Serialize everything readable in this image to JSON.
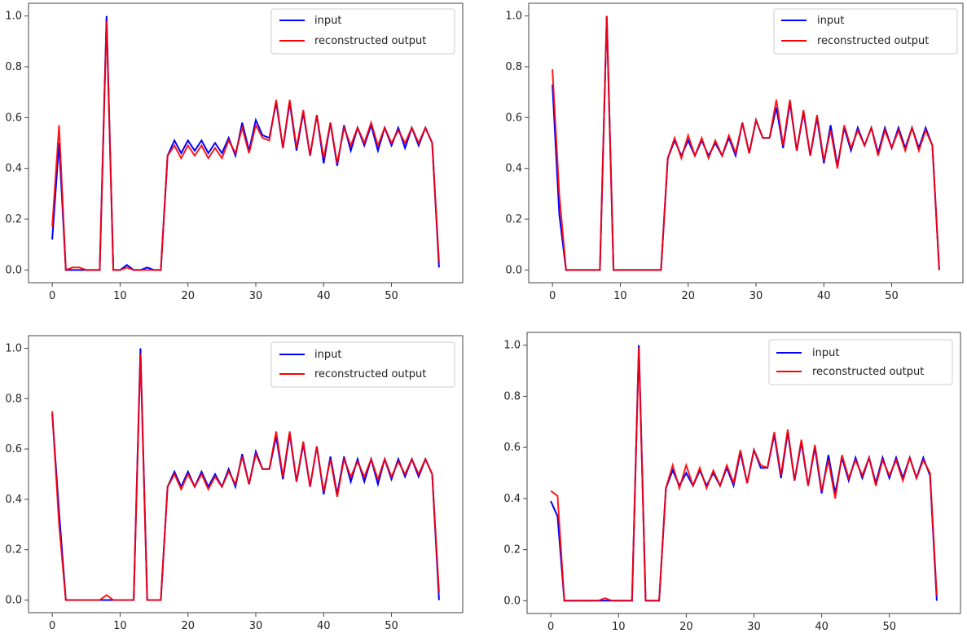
{
  "chart_data": [
    {
      "type": "line",
      "xlim": [
        -3.5,
        60.5
      ],
      "ylim": [
        -0.05,
        1.05
      ],
      "xticks": [
        0,
        10,
        20,
        30,
        40,
        50
      ],
      "yticks": [
        0.0,
        0.2,
        0.4,
        0.6,
        0.8,
        1.0
      ],
      "xticklabels": [
        "0",
        "10",
        "20",
        "30",
        "40",
        "50"
      ],
      "yticklabels": [
        "0.0",
        "0.2",
        "0.4",
        "0.6",
        "0.8",
        "1.0"
      ],
      "legend_position": "top-right",
      "series": [
        {
          "name": "input",
          "color": "#0000ff",
          "values": [
            0.12,
            0.5,
            0.0,
            0.0,
            0.0,
            0.0,
            0.0,
            0.0,
            1.0,
            0.0,
            0.0,
            0.02,
            0.0,
            0.0,
            0.01,
            0.0,
            0.0,
            0.45,
            0.51,
            0.46,
            0.51,
            0.47,
            0.51,
            0.46,
            0.5,
            0.46,
            0.52,
            0.45,
            0.58,
            0.47,
            0.59,
            0.53,
            0.52,
            0.66,
            0.48,
            0.66,
            0.47,
            0.62,
            0.45,
            0.61,
            0.42,
            0.58,
            0.41,
            0.57,
            0.47,
            0.56,
            0.49,
            0.57,
            0.47,
            0.56,
            0.49,
            0.56,
            0.48,
            0.56,
            0.49,
            0.56,
            0.5,
            0.01
          ]
        },
        {
          "name": "reconstructed output",
          "color": "#ff0000",
          "values": [
            0.17,
            0.57,
            0.0,
            0.01,
            0.01,
            0.0,
            0.0,
            0.0,
            0.98,
            0.0,
            0.0,
            0.01,
            0.0,
            0.0,
            0.0,
            0.0,
            0.0,
            0.45,
            0.49,
            0.44,
            0.49,
            0.45,
            0.49,
            0.44,
            0.48,
            0.44,
            0.51,
            0.46,
            0.56,
            0.46,
            0.57,
            0.52,
            0.51,
            0.67,
            0.48,
            0.67,
            0.48,
            0.63,
            0.45,
            0.61,
            0.44,
            0.58,
            0.42,
            0.56,
            0.49,
            0.56,
            0.5,
            0.58,
            0.49,
            0.56,
            0.5,
            0.55,
            0.5,
            0.56,
            0.5,
            0.56,
            0.5,
            0.03
          ]
        }
      ]
    },
    {
      "type": "line",
      "xlim": [
        -3.5,
        60.5
      ],
      "ylim": [
        -0.05,
        1.05
      ],
      "xticks": [
        0,
        10,
        20,
        30,
        40,
        50
      ],
      "yticks": [
        0.0,
        0.2,
        0.4,
        0.6,
        0.8,
        1.0
      ],
      "xticklabels": [
        "0",
        "10",
        "20",
        "30",
        "40",
        "50"
      ],
      "yticklabels": [
        "0.0",
        "0.2",
        "0.4",
        "0.6",
        "0.8",
        "1.0"
      ],
      "legend_position": "top-right",
      "series": [
        {
          "name": "input",
          "color": "#0000ff",
          "values": [
            0.73,
            0.22,
            0.0,
            0.0,
            0.0,
            0.0,
            0.0,
            0.0,
            1.0,
            0.0,
            0.0,
            0.0,
            0.0,
            0.0,
            0.0,
            0.0,
            0.0,
            0.44,
            0.51,
            0.45,
            0.51,
            0.45,
            0.51,
            0.45,
            0.5,
            0.45,
            0.52,
            0.45,
            0.58,
            0.46,
            0.59,
            0.52,
            0.52,
            0.64,
            0.48,
            0.66,
            0.47,
            0.62,
            0.45,
            0.6,
            0.42,
            0.57,
            0.41,
            0.56,
            0.47,
            0.56,
            0.49,
            0.56,
            0.46,
            0.56,
            0.48,
            0.56,
            0.48,
            0.56,
            0.48,
            0.56,
            0.49,
            0.0
          ]
        },
        {
          "name": "reconstructed output",
          "color": "#ff0000",
          "values": [
            0.79,
            0.3,
            0.0,
            0.0,
            0.0,
            0.0,
            0.0,
            0.0,
            1.0,
            0.0,
            0.0,
            0.0,
            0.0,
            0.0,
            0.0,
            0.0,
            0.0,
            0.44,
            0.52,
            0.44,
            0.53,
            0.45,
            0.52,
            0.44,
            0.51,
            0.45,
            0.53,
            0.46,
            0.58,
            0.46,
            0.59,
            0.52,
            0.52,
            0.67,
            0.49,
            0.67,
            0.47,
            0.63,
            0.45,
            0.61,
            0.43,
            0.55,
            0.4,
            0.57,
            0.48,
            0.55,
            0.49,
            0.56,
            0.45,
            0.55,
            0.48,
            0.55,
            0.47,
            0.56,
            0.47,
            0.55,
            0.49,
            0.0
          ]
        }
      ]
    },
    {
      "type": "line",
      "xlim": [
        -3.5,
        60.5
      ],
      "ylim": [
        -0.05,
        1.05
      ],
      "xticks": [
        0,
        10,
        20,
        30,
        40,
        50
      ],
      "yticks": [
        0.0,
        0.2,
        0.4,
        0.6,
        0.8,
        1.0
      ],
      "xticklabels": [
        "0",
        "10",
        "20",
        "30",
        "40",
        "50"
      ],
      "yticklabels": [
        "0.0",
        "0.2",
        "0.4",
        "0.6",
        "0.8",
        "1.0"
      ],
      "legend_position": "top-right",
      "series": [
        {
          "name": "input",
          "color": "#0000ff",
          "values": [
            0.74,
            0.35,
            0.0,
            0.0,
            0.0,
            0.0,
            0.0,
            0.0,
            0.0,
            0.0,
            0.0,
            0.0,
            0.0,
            1.0,
            0.0,
            0.0,
            0.0,
            0.45,
            0.51,
            0.45,
            0.51,
            0.45,
            0.51,
            0.45,
            0.5,
            0.45,
            0.52,
            0.45,
            0.58,
            0.46,
            0.59,
            0.52,
            0.52,
            0.65,
            0.48,
            0.66,
            0.47,
            0.62,
            0.45,
            0.61,
            0.42,
            0.57,
            0.42,
            0.57,
            0.47,
            0.56,
            0.47,
            0.56,
            0.46,
            0.56,
            0.48,
            0.56,
            0.49,
            0.56,
            0.49,
            0.56,
            0.5,
            0.0
          ]
        },
        {
          "name": "reconstructed output",
          "color": "#ff0000",
          "values": [
            0.75,
            0.3,
            0.0,
            0.0,
            0.0,
            0.0,
            0.0,
            0.0,
            0.02,
            0.0,
            0.0,
            0.0,
            0.0,
            0.98,
            0.0,
            0.0,
            0.0,
            0.45,
            0.5,
            0.44,
            0.5,
            0.45,
            0.5,
            0.44,
            0.49,
            0.45,
            0.51,
            0.46,
            0.57,
            0.46,
            0.58,
            0.52,
            0.52,
            0.67,
            0.49,
            0.67,
            0.47,
            0.63,
            0.45,
            0.61,
            0.43,
            0.56,
            0.41,
            0.56,
            0.49,
            0.55,
            0.49,
            0.56,
            0.48,
            0.56,
            0.49,
            0.55,
            0.5,
            0.56,
            0.5,
            0.56,
            0.5,
            0.03
          ]
        }
      ]
    },
    {
      "type": "line",
      "xlim": [
        -3.5,
        60.5
      ],
      "ylim": [
        -0.05,
        1.05
      ],
      "xticks": [
        0,
        10,
        20,
        30,
        40,
        50
      ],
      "yticks": [
        0.0,
        0.2,
        0.4,
        0.6,
        0.8,
        1.0
      ],
      "xticklabels": [
        "0",
        "10",
        "20",
        "30",
        "40",
        "50"
      ],
      "yticklabels": [
        "0.0",
        "0.2",
        "0.4",
        "0.6",
        "0.8",
        "1.0"
      ],
      "legend_position": "top-right",
      "series": [
        {
          "name": "input",
          "color": "#0000ff",
          "values": [
            0.39,
            0.33,
            0.0,
            0.0,
            0.0,
            0.0,
            0.0,
            0.0,
            0.0,
            0.0,
            0.0,
            0.0,
            0.0,
            1.0,
            0.0,
            0.0,
            0.0,
            0.44,
            0.51,
            0.45,
            0.5,
            0.45,
            0.51,
            0.45,
            0.5,
            0.45,
            0.52,
            0.45,
            0.58,
            0.46,
            0.59,
            0.52,
            0.52,
            0.65,
            0.48,
            0.66,
            0.47,
            0.62,
            0.45,
            0.6,
            0.42,
            0.57,
            0.42,
            0.56,
            0.47,
            0.56,
            0.48,
            0.56,
            0.46,
            0.56,
            0.48,
            0.56,
            0.48,
            0.56,
            0.48,
            0.56,
            0.49,
            0.0
          ]
        },
        {
          "name": "reconstructed output",
          "color": "#ff0000",
          "values": [
            0.43,
            0.41,
            0.0,
            0.0,
            0.0,
            0.0,
            0.0,
            0.0,
            0.01,
            0.0,
            0.0,
            0.0,
            0.0,
            0.99,
            0.0,
            0.0,
            0.0,
            0.44,
            0.53,
            0.44,
            0.53,
            0.45,
            0.52,
            0.44,
            0.51,
            0.45,
            0.53,
            0.46,
            0.59,
            0.46,
            0.59,
            0.53,
            0.52,
            0.66,
            0.49,
            0.67,
            0.47,
            0.63,
            0.45,
            0.61,
            0.43,
            0.55,
            0.4,
            0.57,
            0.48,
            0.55,
            0.49,
            0.56,
            0.45,
            0.55,
            0.49,
            0.55,
            0.47,
            0.56,
            0.48,
            0.55,
            0.5,
            0.02
          ]
        }
      ]
    }
  ]
}
